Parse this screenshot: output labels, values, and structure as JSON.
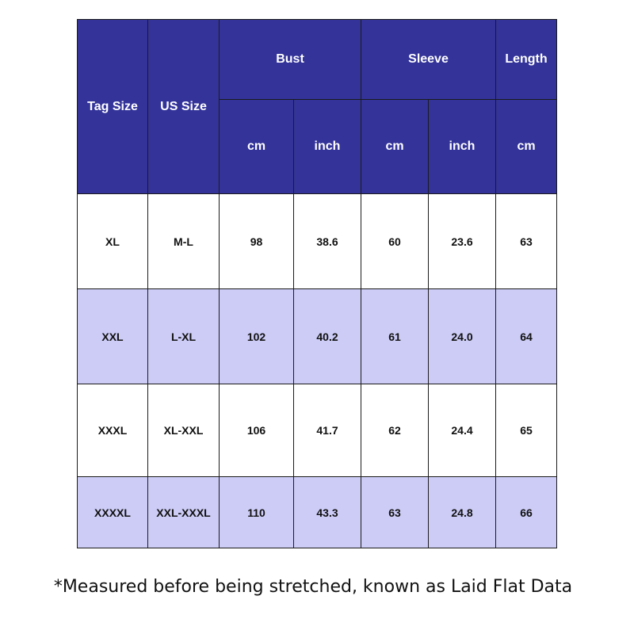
{
  "table": {
    "headers": {
      "tag_size": "Tag Size",
      "us_size": "US Size",
      "bust": "Bust",
      "sleeve": "Sleeve",
      "length": "Length",
      "bust_cm": "cm",
      "bust_inch": "inch",
      "sleeve_cm": "cm",
      "sleeve_inch": "inch",
      "length_cm": "cm"
    },
    "rows": [
      [
        "XL",
        "M-L",
        "98",
        "38.6",
        "60",
        "23.6",
        "63"
      ],
      [
        "XXL",
        "L-XL",
        "102",
        "40.2",
        "61",
        "24.0",
        "64"
      ],
      [
        "XXXL",
        "XL-XXL",
        "106",
        "41.7",
        "62",
        "24.4",
        "65"
      ],
      [
        "XXXXL",
        "XXL-XXXL",
        "110",
        "43.3",
        "63",
        "24.8",
        "66"
      ]
    ]
  },
  "note": "*Measured before being stretched, known as Laid Flat Data",
  "colors": {
    "header_bg": "#33339a",
    "header_text": "#ffffff",
    "row_alt_bg": "#ccccf7",
    "row_bg": "#ffffff",
    "border": "#1b1b1b"
  }
}
